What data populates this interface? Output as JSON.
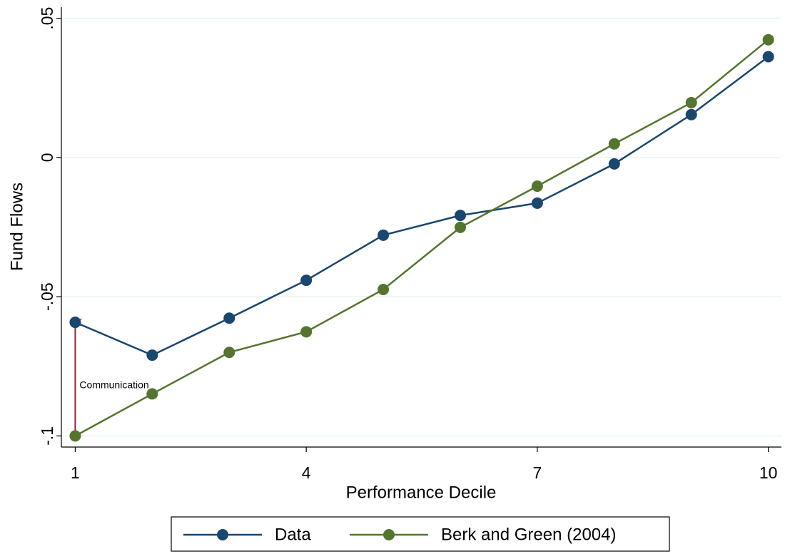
{
  "chart_data": {
    "type": "line",
    "x_label": "Performance Decile",
    "y_label": "Fund Flows",
    "x": [
      1,
      2,
      3,
      4,
      5,
      6,
      7,
      8,
      9,
      10
    ],
    "series": [
      {
        "name": "Data",
        "color": "#1a476f",
        "values": [
          -0.0592,
          -0.071,
          -0.0577,
          -0.0441,
          -0.0279,
          -0.0208,
          -0.0164,
          -0.0023,
          0.0154,
          0.0362
        ]
      },
      {
        "name": "Berk and Green (2004)",
        "color": "#55752f",
        "values": [
          -0.1,
          -0.0849,
          -0.07,
          -0.0626,
          -0.0474,
          -0.0251,
          -0.0103,
          0.0049,
          0.0197,
          0.0423
        ]
      }
    ],
    "xlim": [
      0.82,
      10.17
    ],
    "ylim": [
      -0.104,
      0.054
    ],
    "xticks": [
      1,
      4,
      7,
      10
    ],
    "yticks": [
      {
        "value": -0.1,
        "label": "-.1"
      },
      {
        "value": -0.05,
        "label": "-.05"
      },
      {
        "value": 0,
        "label": "0"
      },
      {
        "value": 0.05,
        "label": ".05"
      }
    ],
    "grid": true,
    "annotation": {
      "text": "Communication",
      "color": "#8b2332"
    },
    "legend": "bottom"
  }
}
